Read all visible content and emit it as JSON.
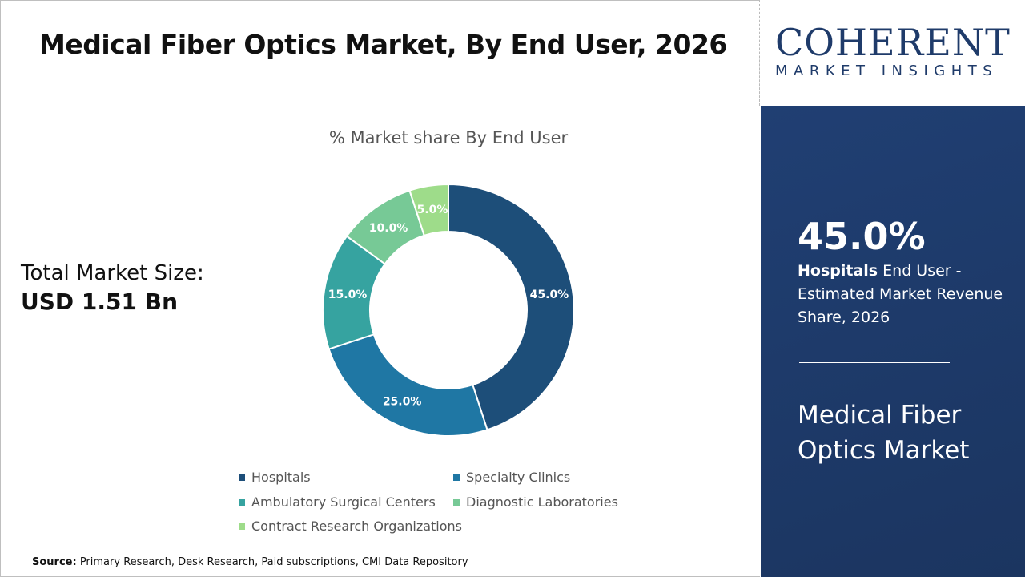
{
  "title": "Medical Fiber Optics Market, By End User, 2026",
  "total": {
    "label": "Total Market Size:",
    "value": "USD 1.51 Bn"
  },
  "source": {
    "label": "Source:",
    "text": " Primary Research, Desk Research, Paid subscriptions, CMI Data Repository"
  },
  "logo": {
    "name": "COHERENT",
    "tagline": "MARKET INSIGHTS"
  },
  "panel": {
    "pct": "45.0%",
    "segment": "Hospitals",
    "desc": " End User - Estimated Market Revenue Share, 2026",
    "market": "Medical Fiber Optics Market"
  },
  "chart_data": {
    "type": "pie",
    "donut": true,
    "title": "% Market share By End User",
    "categories": [
      "Hospitals",
      "Specialty Clinics",
      "Ambulatory Surgical Centers",
      "Diagnostic Laboratories",
      "Contract Research Organizations"
    ],
    "values": [
      45.0,
      25.0,
      15.0,
      10.0,
      5.0
    ],
    "labels": [
      "45.0%",
      "25.0%",
      "15.0%",
      "10.0%",
      "5.0%"
    ],
    "colors": [
      "#1d4e79",
      "#1f77a4",
      "#36a3a0",
      "#77c996",
      "#9edc8a"
    ],
    "legend": "bottom"
  }
}
